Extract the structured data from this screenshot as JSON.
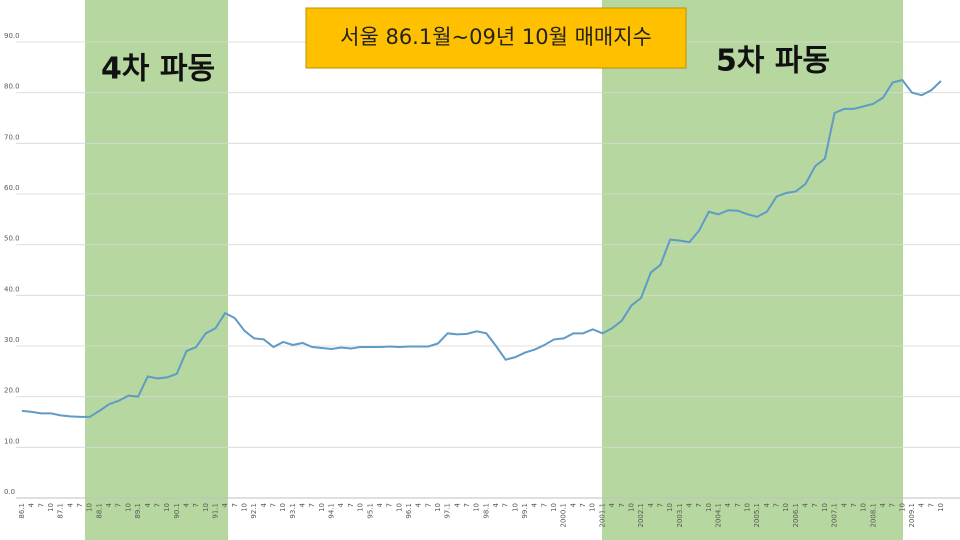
{
  "chart_data": {
    "type": "line",
    "title": "서울 86.1월~09년 10월 매매지수",
    "annotations": [
      "4차 파동",
      "5차 파동"
    ],
    "categories": [
      "86.1",
      "4",
      "7",
      "10",
      "87.1",
      "4",
      "7",
      "10",
      "88.1",
      "4",
      "7",
      "10",
      "89.1",
      "4",
      "7",
      "10",
      "90.1",
      "4",
      "7",
      "10",
      "91.1",
      "4",
      "7",
      "10",
      "92.1",
      "4",
      "7",
      "10",
      "93.1",
      "4",
      "7",
      "10",
      "94.1",
      "4",
      "7",
      "10",
      "95.1",
      "4",
      "7",
      "10",
      "96.1",
      "4",
      "7",
      "10",
      "97.1",
      "4",
      "7",
      "10",
      "98.1",
      "4",
      "7",
      "10",
      "99.1",
      "4",
      "7",
      "10",
      "2000.1",
      "4",
      "7",
      "10",
      "2001.1",
      "4",
      "7",
      "10",
      "2002.1",
      "4",
      "7",
      "10",
      "2003.1",
      "4",
      "7",
      "10",
      "2004.1",
      "4",
      "7",
      "10",
      "2005.1",
      "4",
      "7",
      "10",
      "2006.1",
      "4",
      "7",
      "10",
      "2007.1",
      "4",
      "7",
      "10",
      "2008.1",
      "4",
      "7",
      "10",
      "2009.1",
      "4",
      "7",
      "10"
    ],
    "series": [
      {
        "color": "#5f9bc6",
        "values": [
          17.2,
          17.0,
          16.7,
          16.7,
          16.3,
          16.1,
          16.0,
          16.0,
          17.2,
          18.5,
          19.2,
          20.2,
          20.0,
          24.0,
          23.6,
          23.8,
          24.5,
          29.0,
          29.8,
          32.5,
          33.5,
          36.5,
          35.5,
          33.0,
          31.5,
          31.3,
          29.8,
          30.8,
          30.2,
          30.6,
          29.8,
          29.6,
          29.4,
          29.7,
          29.5,
          29.8,
          29.8,
          29.8,
          29.9,
          29.8,
          29.9,
          29.9,
          29.9,
          30.5,
          32.5,
          32.3,
          32.4,
          32.9,
          32.5,
          30.0,
          27.3,
          27.8,
          28.7,
          29.3,
          30.2,
          31.3,
          31.5,
          32.5,
          32.5,
          33.3,
          32.5,
          33.5,
          35.0,
          38.0,
          39.5,
          44.5,
          46.0,
          51.0,
          50.8,
          50.5,
          52.8,
          56.5,
          56.0,
          56.8,
          56.7,
          56.0,
          55.5,
          56.5,
          59.5,
          60.2,
          60.5,
          62.0,
          65.5,
          67.0,
          76.0,
          76.8,
          76.8,
          77.3,
          77.8,
          79.0,
          82.0,
          82.5,
          80.0,
          79.5,
          80.5,
          82.3
        ]
      }
    ],
    "ylim": [
      0,
      90
    ],
    "yticks": [
      {
        "value": 0,
        "label": "0.0"
      },
      {
        "value": 10,
        "label": "10.0"
      },
      {
        "value": 20,
        "label": "20.0"
      },
      {
        "value": 30,
        "label": "30.0"
      },
      {
        "value": 40,
        "label": "40.0"
      },
      {
        "value": 50,
        "label": "50.0"
      },
      {
        "value": 60,
        "label": "60.0"
      },
      {
        "value": 70,
        "label": "70.0"
      },
      {
        "value": 80,
        "label": "80.0"
      },
      {
        "value": 90,
        "label": "90.0"
      }
    ],
    "grid": true
  }
}
